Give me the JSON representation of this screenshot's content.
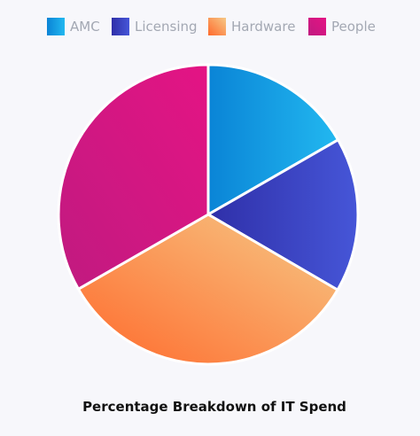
{
  "chart_data": {
    "type": "pie",
    "title": "Percentage Breakdown of IT Spend",
    "categories": [
      "AMC",
      "Licensing",
      "Hardware",
      "People"
    ],
    "values": [
      16.7,
      16.7,
      33.3,
      33.3
    ],
    "legend_position": "top",
    "colors": {
      "AMC": [
        "#0a84d6",
        "#22b8f0"
      ],
      "Licensing": [
        "#2f2fa8",
        "#4656d8"
      ],
      "Hardware": [
        "#ff6a2c",
        "#f6c987"
      ],
      "People": [
        "#c01a80",
        "#e41484"
      ]
    }
  }
}
